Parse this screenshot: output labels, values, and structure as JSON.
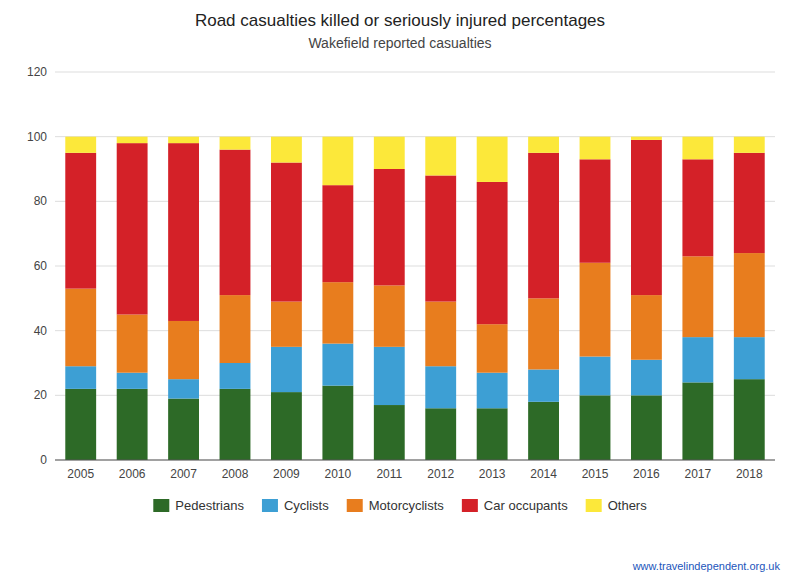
{
  "chart_data": {
    "type": "bar",
    "stacked": true,
    "title": "Road casualties killed or seriously injured percentages",
    "subtitle": "Wakefield reported casualties",
    "annotations": [
      "www.travelindependent.org.uk"
    ],
    "categories": [
      "2005",
      "2006",
      "2007",
      "2008",
      "2009",
      "2010",
      "2011",
      "2012",
      "2013",
      "2014",
      "2015",
      "2016",
      "2017",
      "2018"
    ],
    "series": [
      {
        "name": "Pedestrians",
        "color": "#2d6a27",
        "values": [
          22,
          22,
          19,
          22,
          21,
          23,
          17,
          16,
          16,
          18,
          20,
          20,
          24,
          25
        ]
      },
      {
        "name": "Cyclists",
        "color": "#3d9fd4",
        "values": [
          7,
          5,
          6,
          8,
          14,
          13,
          18,
          13,
          11,
          10,
          12,
          11,
          14,
          13
        ]
      },
      {
        "name": "Motorcyclists",
        "color": "#e87d1e",
        "values": [
          24,
          18,
          18,
          21,
          14,
          19,
          19,
          20,
          15,
          22,
          29,
          20,
          25,
          26
        ]
      },
      {
        "name": "Car occupants",
        "color": "#d42128",
        "values": [
          42,
          53,
          55,
          45,
          43,
          30,
          36,
          39,
          44,
          45,
          32,
          48,
          30,
          31
        ]
      },
      {
        "name": "Others",
        "color": "#fce83a",
        "values": [
          5,
          2,
          2,
          4,
          8,
          15,
          10,
          12,
          14,
          5,
          7,
          1,
          7,
          5
        ]
      }
    ],
    "ylim": [
      0,
      120
    ],
    "yticks": [
      0,
      20,
      40,
      60,
      80,
      100,
      120
    ],
    "grid": true,
    "legend": "bottom"
  }
}
